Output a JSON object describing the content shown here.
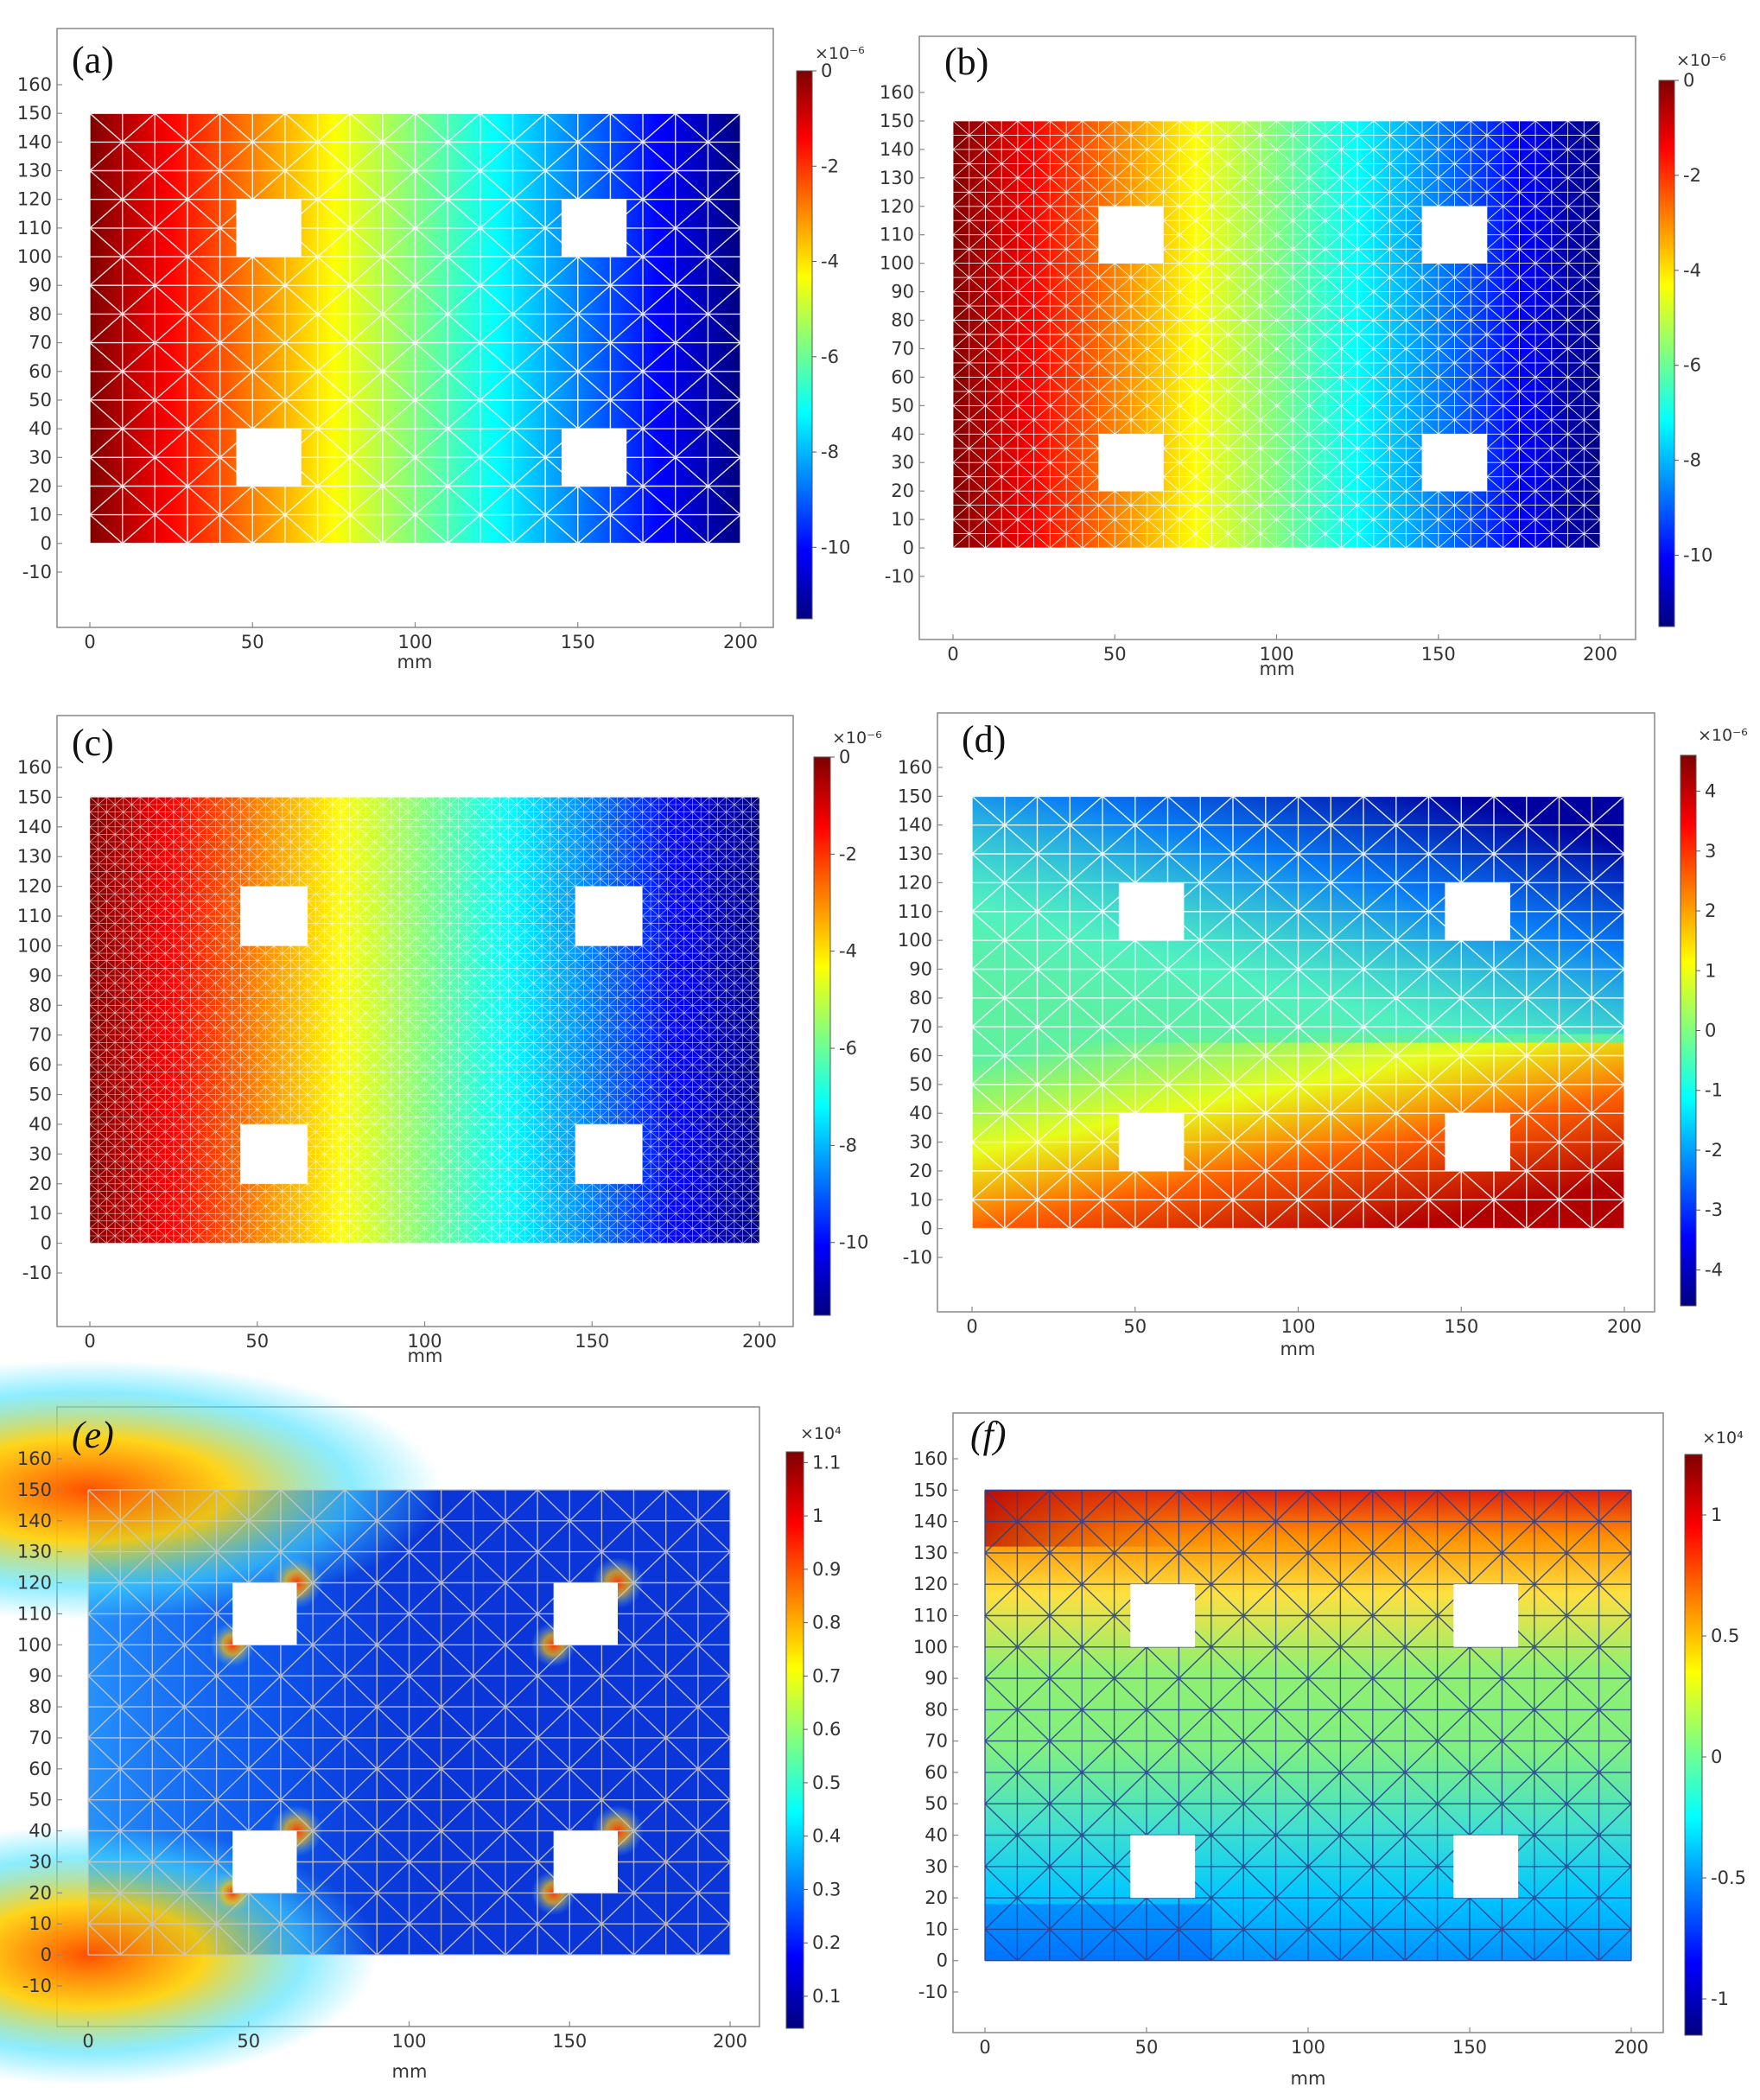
{
  "colors": {
    "jet": [
      "#00007f",
      "#0000ff",
      "#0080ff",
      "#00ffff",
      "#80ff80",
      "#ffff00",
      "#ff8000",
      "#ff0000",
      "#7f0000"
    ],
    "axis": "#888888",
    "tick_text": "#333333",
    "background": "#ffffff"
  },
  "chart_data": [
    {
      "panel": "(a)",
      "type": "heatmap",
      "xlabel": "mm",
      "xticks": [
        "0",
        "50",
        "100",
        "150",
        "200"
      ],
      "yticks": [
        "-10",
        "0",
        "10",
        "20",
        "30",
        "40",
        "50",
        "60",
        "70",
        "80",
        "90",
        "100",
        "110",
        "120",
        "130",
        "140",
        "150",
        "160"
      ],
      "xlim": [
        0,
        200
      ],
      "ylim": [
        -10,
        160
      ],
      "domain": {
        "x": [
          0,
          200
        ],
        "y": [
          0,
          150
        ]
      },
      "holes": [
        [
          45,
          65,
          100,
          120
        ],
        [
          145,
          165,
          100,
          120
        ],
        [
          45,
          65,
          20,
          40
        ],
        [
          145,
          165,
          20,
          40
        ]
      ],
      "field": "horizontal",
      "field_direction": "decreasing-x",
      "mesh": {
        "type": "triangular",
        "divisions": 20,
        "line_color": "#ffffff"
      },
      "colorbar": {
        "exponent": "×10⁻⁶",
        "range": [
          -11.5,
          0
        ],
        "ticks": [
          "0",
          "-2",
          "-4",
          "-6",
          "-8",
          "-10"
        ],
        "tick_values": [
          0,
          -2,
          -4,
          -6,
          -8,
          -10
        ]
      }
    },
    {
      "panel": "(b)",
      "type": "heatmap",
      "xlabel": "mm",
      "xticks": [
        "0",
        "50",
        "100",
        "150",
        "200"
      ],
      "yticks": [
        "-10",
        "0",
        "10",
        "20",
        "30",
        "40",
        "50",
        "60",
        "70",
        "80",
        "90",
        "100",
        "110",
        "120",
        "130",
        "140",
        "150",
        "160"
      ],
      "xlim": [
        0,
        200
      ],
      "ylim": [
        -10,
        160
      ],
      "domain": {
        "x": [
          0,
          200
        ],
        "y": [
          0,
          150
        ]
      },
      "holes": [
        [
          45,
          65,
          100,
          120
        ],
        [
          145,
          165,
          100,
          120
        ],
        [
          45,
          65,
          20,
          40
        ],
        [
          145,
          165,
          20,
          40
        ]
      ],
      "field": "horizontal",
      "field_direction": "decreasing-x",
      "mesh": {
        "type": "triangular",
        "divisions": 40,
        "line_color": "#ffffff"
      },
      "colorbar": {
        "exponent": "×10⁻⁶",
        "range": [
          -11.5,
          0
        ],
        "ticks": [
          "0",
          "-2",
          "-4",
          "-6",
          "-8",
          "-10"
        ],
        "tick_values": [
          0,
          -2,
          -4,
          -6,
          -8,
          -10
        ]
      }
    },
    {
      "panel": "(c)",
      "type": "heatmap",
      "xlabel": "mm",
      "xticks": [
        "0",
        "50",
        "100",
        "150",
        "200"
      ],
      "yticks": [
        "-10",
        "0",
        "10",
        "20",
        "30",
        "40",
        "50",
        "60",
        "70",
        "80",
        "90",
        "100",
        "110",
        "120",
        "130",
        "140",
        "150",
        "160"
      ],
      "xlim": [
        0,
        200
      ],
      "ylim": [
        -10,
        160
      ],
      "domain": {
        "x": [
          0,
          200
        ],
        "y": [
          0,
          150
        ]
      },
      "holes": [
        [
          45,
          65,
          100,
          120
        ],
        [
          145,
          165,
          100,
          120
        ],
        [
          45,
          65,
          20,
          40
        ],
        [
          145,
          165,
          20,
          40
        ]
      ],
      "field": "horizontal",
      "field_direction": "decreasing-x",
      "mesh": {
        "type": "triangular",
        "divisions": 80,
        "line_color": "#ffffff"
      },
      "colorbar": {
        "exponent": "×10⁻⁶",
        "range": [
          -11.5,
          0
        ],
        "ticks": [
          "0",
          "-2",
          "-4",
          "-6",
          "-8",
          "-10"
        ],
        "tick_values": [
          0,
          -2,
          -4,
          -6,
          -8,
          -10
        ]
      }
    },
    {
      "panel": "(d)",
      "type": "heatmap",
      "xlabel": "mm",
      "xticks": [
        "0",
        "50",
        "100",
        "150",
        "200"
      ],
      "yticks": [
        "-10",
        "0",
        "10",
        "20",
        "30",
        "40",
        "50",
        "60",
        "70",
        "80",
        "90",
        "100",
        "110",
        "120",
        "130",
        "140",
        "150",
        "160"
      ],
      "xlim": [
        0,
        200
      ],
      "ylim": [
        -10,
        160
      ],
      "domain": {
        "x": [
          0,
          200
        ],
        "y": [
          0,
          150
        ]
      },
      "holes": [
        [
          45,
          65,
          100,
          120
        ],
        [
          145,
          165,
          100,
          120
        ],
        [
          45,
          65,
          20,
          40
        ],
        [
          145,
          165,
          20,
          40
        ]
      ],
      "field": "diagonal",
      "field_direction": "increasing toward bottom-right, decreasing toward top-right",
      "mesh": {
        "type": "triangular",
        "divisions": 20,
        "line_color": "#ffffff"
      },
      "colorbar": {
        "exponent": "×10⁻⁶",
        "range": [
          -4.6,
          4.6
        ],
        "ticks": [
          "4",
          "3",
          "2",
          "1",
          "0",
          "-1",
          "-2",
          "-3",
          "-4"
        ],
        "tick_values": [
          4,
          3,
          2,
          1,
          0,
          -1,
          -2,
          -3,
          -4
        ]
      }
    },
    {
      "panel": "(e)",
      "type": "heatmap",
      "xlabel": "mm",
      "xticks": [
        "0",
        "50",
        "100",
        "150",
        "200"
      ],
      "yticks": [
        "-10",
        "0",
        "10",
        "20",
        "30",
        "40",
        "50",
        "60",
        "70",
        "80",
        "90",
        "100",
        "110",
        "120",
        "130",
        "140",
        "150",
        "160"
      ],
      "xlim": [
        0,
        200
      ],
      "ylim": [
        -10,
        160
      ],
      "domain": {
        "x": [
          0,
          200
        ],
        "y": [
          0,
          150
        ]
      },
      "holes": [
        [
          45,
          65,
          100,
          120
        ],
        [
          145,
          165,
          100,
          120
        ],
        [
          45,
          65,
          20,
          40
        ],
        [
          145,
          165,
          20,
          40
        ]
      ],
      "field": "stress-magnitude",
      "field_direction": "peaks at left corners and hole corners",
      "mesh": {
        "type": "triangular",
        "divisions": 20,
        "line_color": "#c8c8c8"
      },
      "colorbar": {
        "exponent": "×10⁴",
        "range": [
          0.04,
          1.12
        ],
        "ticks": [
          "1.1",
          "1",
          "0.9",
          "0.8",
          "0.7",
          "0.6",
          "0.5",
          "0.4",
          "0.3",
          "0.2",
          "0.1"
        ],
        "tick_values": [
          1.1,
          1.0,
          0.9,
          0.8,
          0.7,
          0.6,
          0.5,
          0.4,
          0.3,
          0.2,
          0.1
        ]
      }
    },
    {
      "panel": "(f)",
      "type": "heatmap",
      "xlabel": "mm",
      "xticks": [
        "0",
        "50",
        "100",
        "150",
        "200"
      ],
      "yticks": [
        "-10",
        "0",
        "10",
        "20",
        "30",
        "40",
        "50",
        "60",
        "70",
        "80",
        "90",
        "100",
        "110",
        "120",
        "130",
        "140",
        "150",
        "160"
      ],
      "xlim": [
        0,
        200
      ],
      "ylim": [
        -10,
        160
      ],
      "domain": {
        "x": [
          0,
          200
        ],
        "y": [
          0,
          150
        ]
      },
      "holes": [
        [
          45,
          65,
          100,
          120
        ],
        [
          145,
          165,
          100,
          120
        ],
        [
          45,
          65,
          20,
          40
        ],
        [
          145,
          165,
          20,
          40
        ]
      ],
      "field": "vertical-stress",
      "field_direction": "positive at top, negative at bottom",
      "mesh": {
        "type": "triangular",
        "divisions": 20,
        "line_color": "#2a3f8f"
      },
      "colorbar": {
        "exponent": "×10⁴",
        "range": [
          -1.15,
          1.25
        ],
        "ticks": [
          "1",
          "0.5",
          "0",
          "-0.5",
          "-1"
        ],
        "tick_values": [
          1,
          0.5,
          0,
          -0.5,
          -1
        ]
      }
    }
  ]
}
